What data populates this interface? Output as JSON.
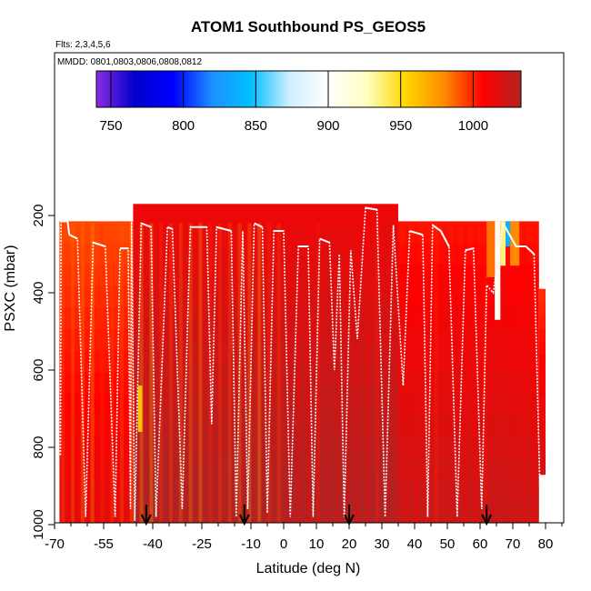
{
  "chart_data": {
    "type": "heatmap",
    "title": "ATOM1 Southbound PS_GEOS5",
    "subtitle_flights": "Flts: 2,3,4,5,6",
    "subtitle_dates": "MMDD: 0801,0803,0806,0808,0812",
    "xlabel": "Latitude (deg N)",
    "ylabel": "PSXC (mbar)",
    "xlim": [
      -70,
      85
    ],
    "ylim": [
      1000,
      100
    ],
    "x_ticks": [
      "-70",
      "-55",
      "-40",
      "-25",
      "-10",
      "0",
      "10",
      "20",
      "30",
      "40",
      "50",
      "60",
      "70",
      "80"
    ],
    "x_tick_values": [
      -70,
      -55,
      -40,
      -25,
      -10,
      0,
      10,
      20,
      30,
      40,
      50,
      60,
      70,
      80
    ],
    "y_ticks": [
      "200",
      "400",
      "600",
      "800",
      "1000"
    ],
    "y_tick_values": [
      200,
      400,
      600,
      800,
      1000
    ],
    "colorbar": {
      "range": [
        740,
        1033
      ],
      "tick_values": [
        750,
        800,
        850,
        900,
        950,
        1000
      ],
      "tick_labels": [
        "750",
        "800",
        "850",
        "900",
        "950",
        "1000"
      ],
      "colors": [
        "#8a2be2",
        "#0000cd",
        "#0000ff",
        "#1e90ff",
        "#00bfff",
        "#cfefff",
        "#ffffff",
        "#ffffc0",
        "#ffd700",
        "#ff8c00",
        "#ff0000",
        "#b22222"
      ]
    },
    "background_regions": [
      {
        "x0": -68.5,
        "x1": -46,
        "p_top": 215,
        "p_bottom": 1000,
        "value": 1005
      },
      {
        "x0": -46,
        "x1": 35,
        "p_top": 170,
        "p_bottom": 1000,
        "value": 1025
      },
      {
        "x0": 35,
        "x1": 78,
        "p_top": 215,
        "p_bottom": 1000,
        "value": 1015
      },
      {
        "x0": 78,
        "x1": 80,
        "p_top": 390,
        "p_bottom": 870,
        "value": 1010
      }
    ],
    "highlight_patches": [
      {
        "x0": -44.5,
        "x1": -43.2,
        "p_top": 640,
        "p_bottom": 760,
        "value": 960
      },
      {
        "x0": 64.5,
        "x1": 66.2,
        "p_top": 215,
        "p_bottom": 470,
        "value": 905
      },
      {
        "x0": 66.2,
        "x1": 67.8,
        "p_top": 215,
        "p_bottom": 330,
        "value": 935
      },
      {
        "x0": 67.8,
        "x1": 69.2,
        "p_top": 215,
        "p_bottom": 280,
        "value": 840
      },
      {
        "x0": 62,
        "x1": 64.5,
        "p_top": 215,
        "p_bottom": 360,
        "value": 985
      },
      {
        "x0": 69.2,
        "x1": 72,
        "p_top": 215,
        "p_bottom": 330,
        "value": 980
      }
    ],
    "profile_turnpoints": [
      [
        -68.2,
        820
      ],
      [
        -68,
        215
      ],
      [
        -66,
        215
      ],
      [
        -65.5,
        250
      ],
      [
        -63,
        260
      ],
      [
        -60.5,
        980
      ],
      [
        -58.2,
        270
      ],
      [
        -54.5,
        280
      ],
      [
        -51.5,
        980
      ],
      [
        -50,
        285
      ],
      [
        -47.5,
        285
      ],
      [
        -46.8,
        960
      ],
      [
        -46.5,
        200
      ],
      [
        -45.5,
        990
      ],
      [
        -43.5,
        220
      ],
      [
        -40.5,
        230
      ],
      [
        -39,
        980
      ],
      [
        -35.5,
        230
      ],
      [
        -34,
        235
      ],
      [
        -31,
        960
      ],
      [
        -28.5,
        230
      ],
      [
        -23.5,
        230
      ],
      [
        -22,
        740
      ],
      [
        -20.5,
        230
      ],
      [
        -16,
        240
      ],
      [
        -14.5,
        980
      ],
      [
        -12.5,
        240
      ],
      [
        -11,
        960
      ],
      [
        -9,
        220
      ],
      [
        -6.5,
        230
      ],
      [
        -5,
        970
      ],
      [
        -3,
        240
      ],
      [
        0,
        240
      ],
      [
        2,
        980
      ],
      [
        4.5,
        280
      ],
      [
        7.5,
        280
      ],
      [
        9,
        980
      ],
      [
        11,
        260
      ],
      [
        14,
        270
      ],
      [
        15.5,
        600
      ],
      [
        17,
        300
      ],
      [
        18.5,
        980
      ],
      [
        20.5,
        290
      ],
      [
        22.5,
        520
      ],
      [
        25,
        180
      ],
      [
        28.5,
        185
      ],
      [
        31,
        980
      ],
      [
        33.5,
        225
      ],
      [
        36.5,
        640
      ],
      [
        38.5,
        240
      ],
      [
        42.5,
        250
      ],
      [
        44,
        980
      ],
      [
        45.5,
        225
      ],
      [
        48,
        240
      ],
      [
        50.5,
        280
      ],
      [
        53,
        980
      ],
      [
        55.5,
        290
      ],
      [
        58,
        285
      ],
      [
        60.5,
        960
      ],
      [
        62,
        380
      ],
      [
        64,
        400
      ],
      [
        67,
        220
      ],
      [
        71,
        280
      ],
      [
        74,
        280
      ],
      [
        76.5,
        300
      ],
      [
        78.5,
        980
      ]
    ],
    "arrows_latitude": [
      -42,
      -12,
      20,
      62
    ],
    "arrow_pressure": 1000
  }
}
